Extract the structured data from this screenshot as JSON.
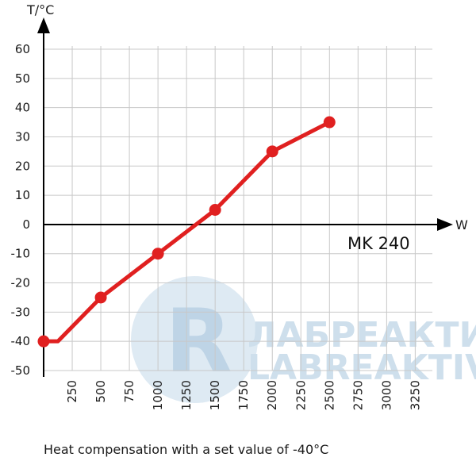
{
  "chart_data": {
    "type": "line",
    "xlabel": "W",
    "ylabel": "T/°C",
    "annotation": "MK 240",
    "caption": "Heat compensation with a set value of -40°C",
    "xlim": [
      0,
      3400
    ],
    "ylim": [
      -50,
      60
    ],
    "x_ticks": [
      "250",
      "500",
      "750",
      "1000",
      "1250",
      "1500",
      "1750",
      "2000",
      "2250",
      "2500",
      "2750",
      "3000",
      "3250"
    ],
    "y_ticks": [
      "60",
      "50",
      "40",
      "30",
      "20",
      "10",
      "0",
      "-10",
      "-20",
      "-30",
      "-40",
      "-50"
    ],
    "grid": true,
    "series": [
      {
        "color": "#e02020",
        "points": [
          {
            "x": 0,
            "y": -40
          },
          {
            "x": 500,
            "y": -25
          },
          {
            "x": 1000,
            "y": -10
          },
          {
            "x": 1500,
            "y": 5
          },
          {
            "x": 2000,
            "y": 25
          },
          {
            "x": 2500,
            "y": 35
          }
        ]
      }
    ],
    "watermark": {
      "line1": "ЛАБРЕАКТИВ",
      "line2": "LABREAKTIV",
      "color": "#c9dcea"
    }
  }
}
